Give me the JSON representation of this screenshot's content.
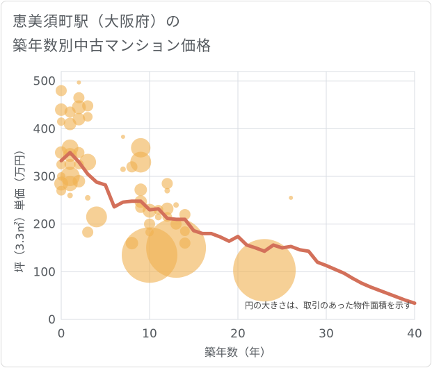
{
  "title": {
    "line1": "恵美須町駅（大阪府）の",
    "line2": "築年数別中古マンション価格"
  },
  "note": "円の大きさは、取引のあった物件面積を示す",
  "colors": {
    "bubble": "#f0b050",
    "line": "#d3705a",
    "grid": "#d9dde3"
  },
  "chart_data": {
    "type": "scatter",
    "xlabel": "築年数（年）",
    "ylabel": "坪（3.3㎡）単価（万円）",
    "xlim": [
      0,
      40
    ],
    "ylim": [
      0,
      520
    ],
    "xticks": [
      "0",
      "10",
      "20",
      "30",
      "40"
    ],
    "yticks": [
      "0",
      "100",
      "200",
      "300",
      "400",
      "500"
    ],
    "bubbles": [
      {
        "x": 0,
        "y": 480,
        "r": 8
      },
      {
        "x": 0,
        "y": 440,
        "r": 9
      },
      {
        "x": 0,
        "y": 415,
        "r": 6
      },
      {
        "x": 0,
        "y": 350,
        "r": 9
      },
      {
        "x": 0,
        "y": 325,
        "r": 7
      },
      {
        "x": 0,
        "y": 300,
        "r": 6
      },
      {
        "x": 0,
        "y": 285,
        "r": 10
      },
      {
        "x": 0,
        "y": 270,
        "r": 7
      },
      {
        "x": 1,
        "y": 435,
        "r": 8
      },
      {
        "x": 1,
        "y": 410,
        "r": 9
      },
      {
        "x": 1,
        "y": 360,
        "r": 12
      },
      {
        "x": 1,
        "y": 345,
        "r": 10
      },
      {
        "x": 1,
        "y": 325,
        "r": 8
      },
      {
        "x": 1,
        "y": 300,
        "r": 14
      },
      {
        "x": 1,
        "y": 285,
        "r": 11
      },
      {
        "x": 1,
        "y": 260,
        "r": 4
      },
      {
        "x": 2,
        "y": 497,
        "r": 3
      },
      {
        "x": 2,
        "y": 465,
        "r": 8
      },
      {
        "x": 2,
        "y": 445,
        "r": 10
      },
      {
        "x": 2,
        "y": 420,
        "r": 9
      },
      {
        "x": 2,
        "y": 350,
        "r": 8
      },
      {
        "x": 2,
        "y": 325,
        "r": 7
      },
      {
        "x": 2,
        "y": 290,
        "r": 9
      },
      {
        "x": 3,
        "y": 448,
        "r": 8
      },
      {
        "x": 3,
        "y": 425,
        "r": 7
      },
      {
        "x": 3,
        "y": 330,
        "r": 12
      },
      {
        "x": 3,
        "y": 255,
        "r": 4
      },
      {
        "x": 3,
        "y": 183,
        "r": 8
      },
      {
        "x": 4,
        "y": 215,
        "r": 15
      },
      {
        "x": 7,
        "y": 383,
        "r": 3
      },
      {
        "x": 7,
        "y": 315,
        "r": 4
      },
      {
        "x": 8,
        "y": 320,
        "r": 8
      },
      {
        "x": 8,
        "y": 160,
        "r": 9
      },
      {
        "x": 9,
        "y": 360,
        "r": 14
      },
      {
        "x": 9,
        "y": 330,
        "r": 15
      },
      {
        "x": 9,
        "y": 272,
        "r": 9
      },
      {
        "x": 9,
        "y": 247,
        "r": 9
      },
      {
        "x": 9,
        "y": 235,
        "r": 8
      },
      {
        "x": 10,
        "y": 228,
        "r": 10
      },
      {
        "x": 10,
        "y": 200,
        "r": 8
      },
      {
        "x": 10,
        "y": 183,
        "r": 6
      },
      {
        "x": 10,
        "y": 135,
        "r": 40
      },
      {
        "x": 11,
        "y": 230,
        "r": 7
      },
      {
        "x": 11,
        "y": 215,
        "r": 5
      },
      {
        "x": 12,
        "y": 285,
        "r": 8
      },
      {
        "x": 12,
        "y": 270,
        "r": 4
      },
      {
        "x": 12,
        "y": 232,
        "r": 9
      },
      {
        "x": 12,
        "y": 215,
        "r": 7
      },
      {
        "x": 13,
        "y": 240,
        "r": 4
      },
      {
        "x": 13,
        "y": 200,
        "r": 8
      },
      {
        "x": 13,
        "y": 150,
        "r": 43
      },
      {
        "x": 14,
        "y": 220,
        "r": 8
      },
      {
        "x": 14,
        "y": 185,
        "r": 7
      },
      {
        "x": 14,
        "y": 160,
        "r": 8
      },
      {
        "x": 23,
        "y": 103,
        "r": 45
      },
      {
        "x": 26,
        "y": 255,
        "r": 3
      }
    ],
    "series": [
      {
        "x": [
          0,
          1,
          2,
          3,
          4,
          5,
          6,
          7,
          8,
          9,
          10,
          11,
          12,
          13,
          14,
          15,
          16,
          17,
          18,
          19,
          20,
          21,
          22,
          23,
          24,
          25,
          26,
          27,
          28,
          29,
          30,
          31,
          32,
          33,
          34,
          35,
          36,
          37,
          38,
          39,
          40
        ],
        "y": [
          333,
          350,
          330,
          305,
          288,
          282,
          236,
          246,
          248,
          248,
          230,
          232,
          212,
          210,
          210,
          186,
          180,
          180,
          173,
          164,
          174,
          156,
          150,
          143,
          156,
          150,
          153,
          146,
          143,
          120,
          113,
          105,
          97,
          86,
          76,
          68,
          61,
          54,
          47,
          40,
          34
        ]
      }
    ]
  }
}
